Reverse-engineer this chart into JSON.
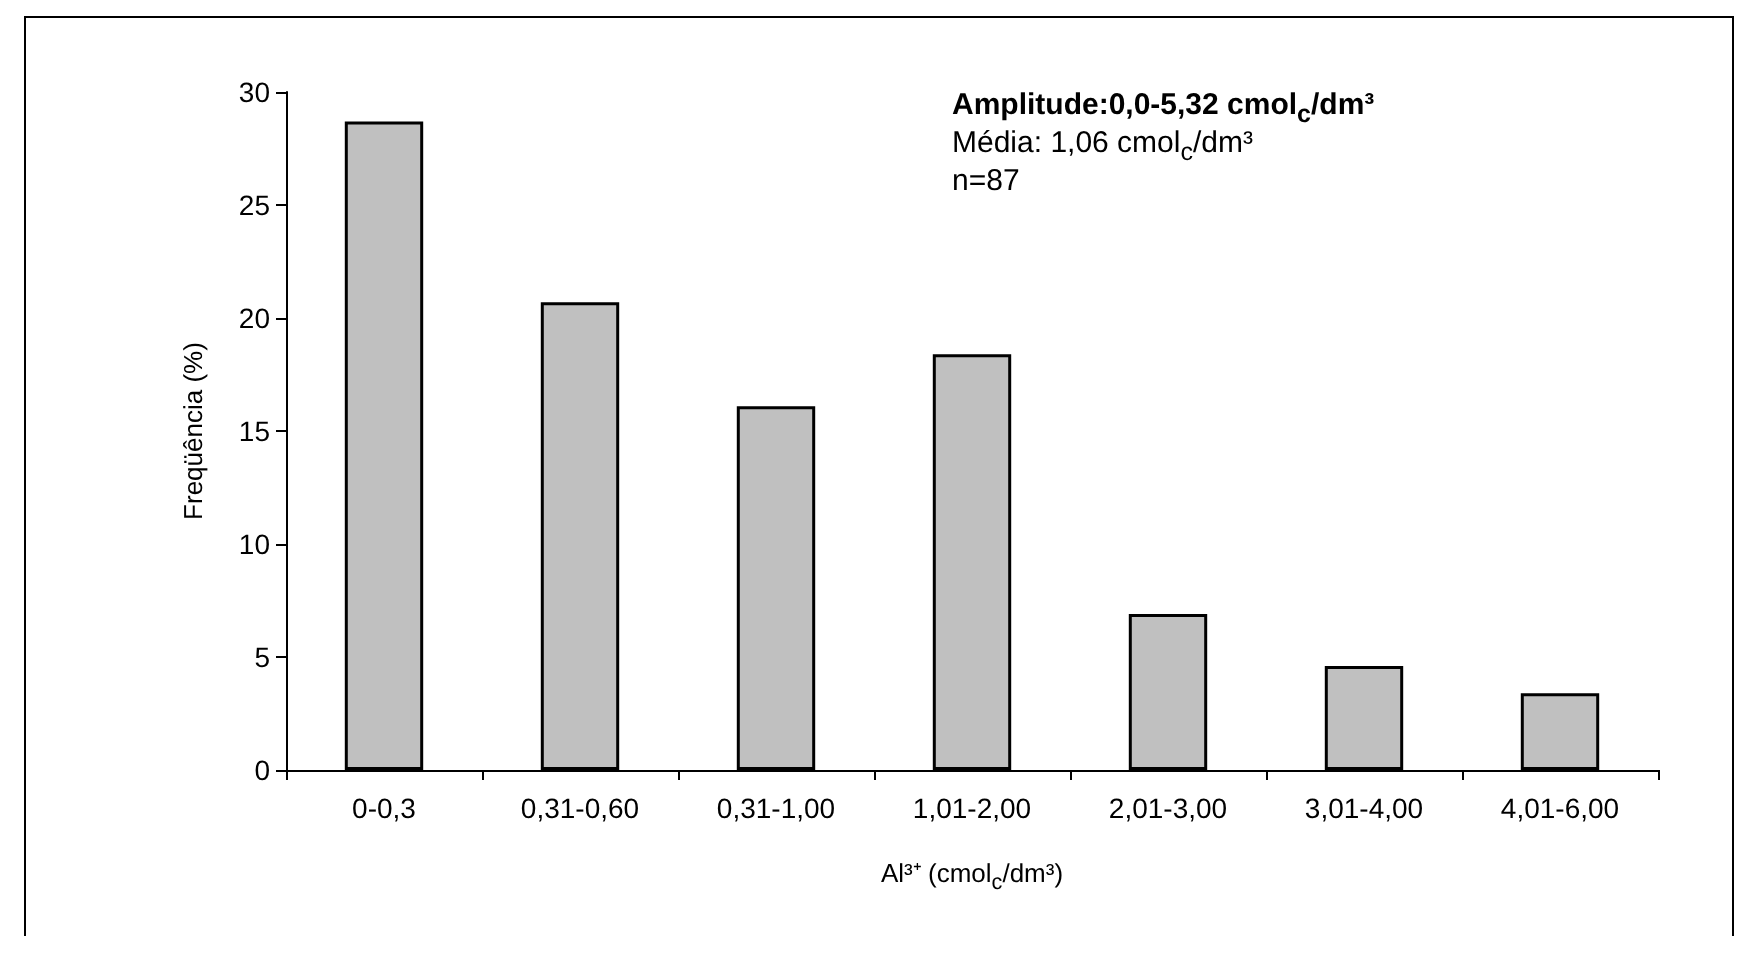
{
  "chart_data": {
    "type": "bar",
    "categories": [
      "0-0,3",
      "0,31-0,60",
      "0,31-1,00",
      "1,01-2,00",
      "2,01-3,00",
      "3,01-4,00",
      "4,01-6,00"
    ],
    "values": [
      28.7,
      20.7,
      16.1,
      18.4,
      6.9,
      4.6,
      3.4
    ],
    "color": "#c0c0c0",
    "xlabel": "Al³⁺ (cmol$_{c}$/dm³)",
    "ylabel": "Freqüência (%)",
    "ylim": [
      0,
      30
    ],
    "yticks": [
      0,
      5,
      10,
      15,
      20,
      25,
      30
    ],
    "grid": false,
    "annotations": [
      "Amplitude:0,0-5,32  cmol$_{c}$/dm³",
      "Média: 1,06 cmol$_{c}$/dm³",
      "n=87"
    ]
  }
}
